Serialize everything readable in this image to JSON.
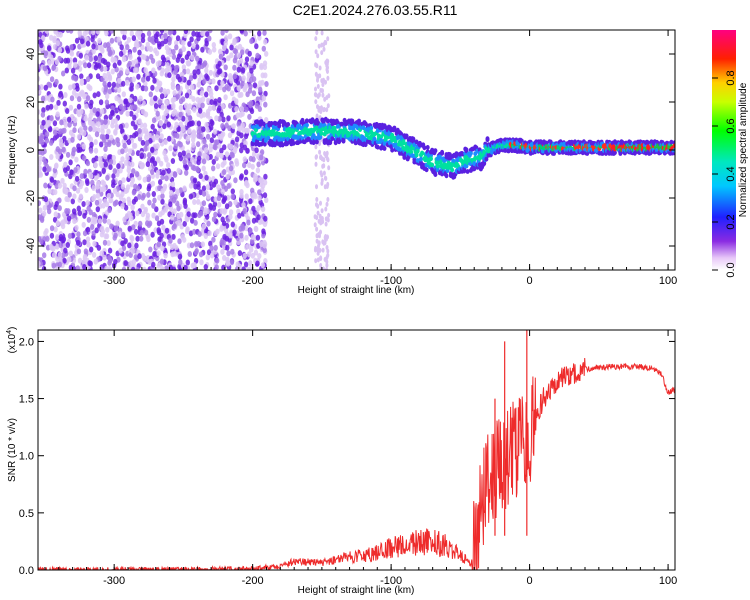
{
  "title": "C2E1.2024.276.03.55.R11",
  "colors": {
    "snr_line": "#ee2b2b",
    "frame": "#000000",
    "background": "#ffffff"
  },
  "chart_data": [
    {
      "type": "heatmap",
      "title": "C2E1.2024.276.03.55.R11",
      "xlabel": "Height of straight line (km)",
      "ylabel": "Frequency (Hz)",
      "xlim": [
        -355,
        105
      ],
      "ylim": [
        -50,
        50
      ],
      "x_ticks": [
        "-300",
        "-200",
        "-100",
        "0",
        "100"
      ],
      "y_ticks": [
        "-40",
        "-20",
        "0",
        "20",
        "40"
      ],
      "colorbar": {
        "label": "Normalized spectral amplitude",
        "range": [
          0,
          1
        ],
        "ticks": [
          "0.0",
          "0.2",
          "0.4",
          "0.6",
          "0.8"
        ],
        "colormap": "rainbow (white-violet-blue-cyan-green-yellow-red-magenta)"
      },
      "ridge": {
        "x": [
          -200,
          -180,
          -150,
          -120,
          -100,
          -85,
          -70,
          -55,
          -45,
          -35,
          -30,
          -20,
          -10,
          0,
          20,
          50,
          80,
          105
        ],
        "frequency": [
          7,
          7,
          8,
          7,
          5,
          0,
          -5,
          -7,
          -4,
          -3,
          0,
          2,
          2,
          1,
          1,
          1,
          1,
          1
        ]
      }
    },
    {
      "type": "line",
      "xlabel": "Height of straight line (km)",
      "ylabel": "SNR (10 * v/v)",
      "y_scale_note": "(x10",
      "y_scale_exponent": "4",
      "xlim": [
        -355,
        105
      ],
      "ylim": [
        0,
        2.1
      ],
      "x_ticks": [
        "-300",
        "-200",
        "-100",
        "0",
        "100"
      ],
      "y_ticks": [
        "0.0",
        "0.5",
        "1.0",
        "1.5",
        "2.0"
      ],
      "series": [
        {
          "x": [
            -355,
            -300,
            -250,
            -200,
            -180,
            -170,
            -150,
            -130,
            -110,
            -100,
            -90,
            -80,
            -70,
            -60,
            -50,
            -42,
            -38,
            -35,
            -30,
            -25,
            -20,
            -15,
            -10,
            -5,
            0,
            5,
            10,
            20,
            30,
            40,
            60,
            80,
            90,
            95,
            100,
            105
          ],
          "y": [
            0.0,
            0.0,
            0.0,
            0.01,
            0.03,
            0.06,
            0.05,
            0.09,
            0.12,
            0.16,
            0.18,
            0.2,
            0.2,
            0.17,
            0.1,
            0.06,
            0.3,
            0.55,
            0.75,
            0.85,
            0.95,
            1.0,
            1.05,
            1.15,
            1.2,
            1.35,
            1.5,
            1.65,
            1.72,
            1.76,
            1.78,
            1.78,
            1.76,
            1.72,
            1.55,
            1.58
          ],
          "spikes": [
            {
              "x": -18,
              "y": 2.0
            },
            {
              "x": -2,
              "y": 2.1
            },
            {
              "x": -25,
              "y": 1.5
            }
          ]
        }
      ]
    }
  ]
}
